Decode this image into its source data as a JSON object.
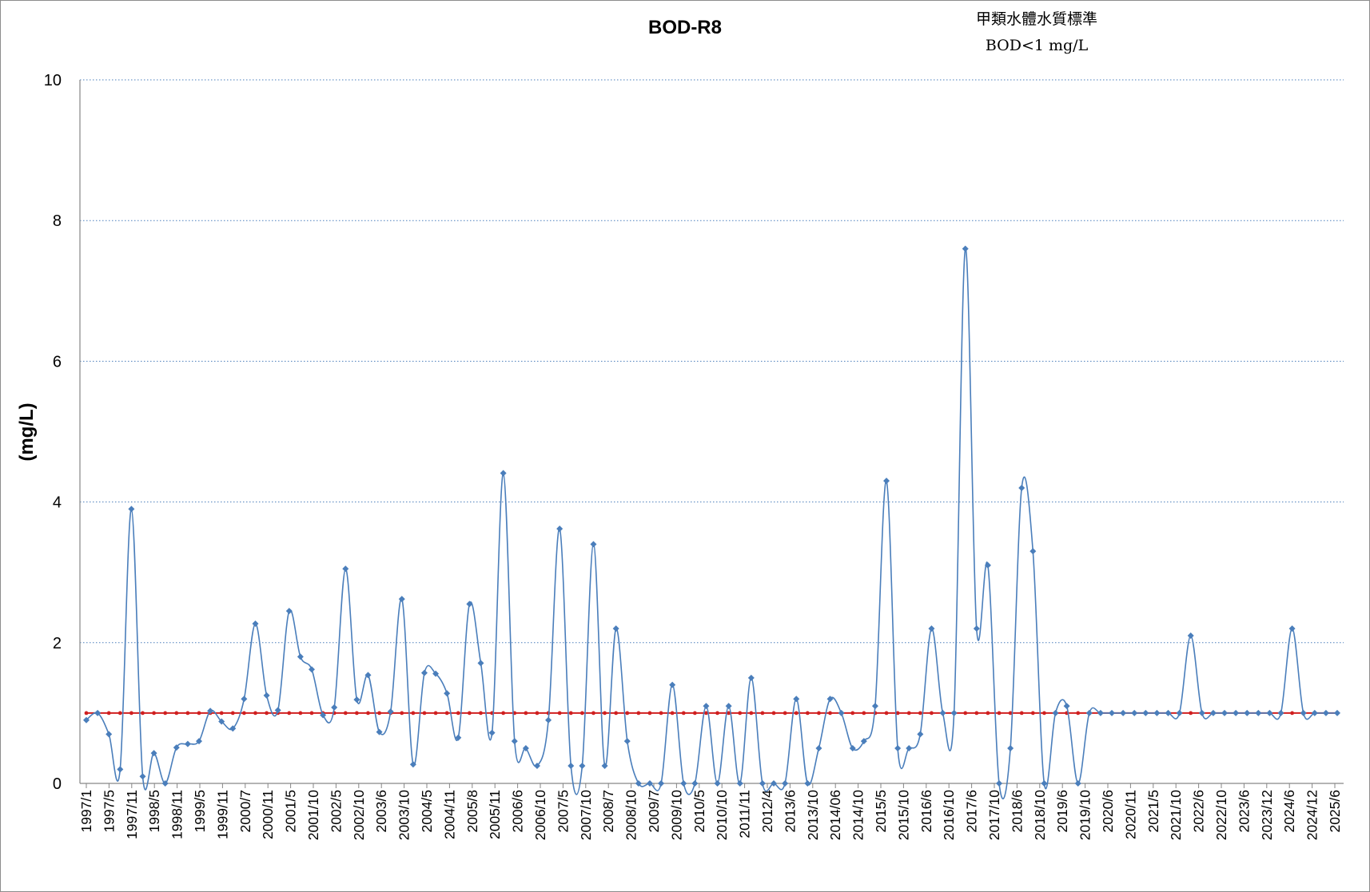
{
  "chart_data": {
    "type": "line",
    "title": "BOD-R8",
    "annotation": [
      "甲類水體水質標準",
      "BOD<1 mg/L"
    ],
    "ylabel": "(mg/L)",
    "xlabel": "",
    "ylim": [
      0,
      10
    ],
    "yticks": [
      0,
      2,
      4,
      6,
      8,
      10
    ],
    "grid": "horizontal dotted",
    "colors": {
      "series": "#4a7ebb",
      "standard": "#d02020",
      "grid": "#4a7ebb"
    },
    "x_tick_labels": [
      "1997/1",
      "1997/5",
      "1997/11",
      "1998/5",
      "1998/11",
      "1999/5",
      "1999/11",
      "2000/7",
      "2000/11",
      "2001/5",
      "2001/10",
      "2002/5",
      "2002/10",
      "2003/6",
      "2003/10",
      "2004/5",
      "2004/11",
      "2005/8",
      "2005/11",
      "2006/6",
      "2006/10",
      "2007/5",
      "2007/10",
      "2008/7",
      "2008/10",
      "2009/7",
      "2009/10",
      "2010/5",
      "2010/10",
      "2011/11",
      "2012/4",
      "2013/6",
      "2013/10",
      "2014/06",
      "2014/10",
      "2015/5",
      "2015/10",
      "2016/6",
      "2016/10",
      "2017/6",
      "2017/10",
      "2018/6",
      "2018/10",
      "2019/6",
      "2019/10",
      "2020/6",
      "2020/11",
      "2021/5",
      "2021/10",
      "2022/6",
      "2022/10",
      "2023/6",
      "2023/12",
      "2024/6",
      "2024/12",
      "2025/6"
    ],
    "series": [
      {
        "values": [
          0.9,
          1.0,
          0.7,
          0.2,
          3.9,
          0.1,
          0.43,
          0.0,
          0.51,
          0.56,
          0.6,
          1.03,
          0.88,
          0.78,
          1.2,
          2.27,
          1.25,
          1.04,
          2.45,
          1.8,
          1.62,
          0.97,
          1.08,
          3.05,
          1.19,
          1.54,
          0.73,
          1.02,
          2.62,
          0.27,
          1.57,
          1.56,
          1.28,
          0.65,
          2.55,
          1.71,
          0.72,
          4.41,
          0.6,
          0.5,
          0.25,
          0.9,
          3.62,
          0.25,
          0.25,
          3.4,
          0.25,
          2.2,
          0.6,
          0.0,
          0.0,
          0.0,
          1.4,
          0.0,
          0.0,
          1.1,
          0.0,
          1.1,
          0.0,
          1.5,
          0.0,
          0.0,
          0.0,
          1.2,
          0.0,
          0.5,
          1.2,
          1.0,
          0.5,
          0.6,
          1.1,
          4.3,
          0.5,
          0.5,
          0.7,
          2.2,
          1.0,
          1.0,
          7.6,
          2.2,
          3.1,
          0.0,
          0.5,
          4.2,
          3.3,
          0.0,
          1.0,
          1.1,
          0.0,
          1.0,
          1.0,
          1.0,
          1.0,
          1.0,
          1.0,
          1.0,
          1.0,
          1.0,
          2.1,
          1.0,
          1.0,
          1.0,
          1.0,
          1.0,
          1.0,
          1.0,
          1.0,
          2.2,
          1.0,
          1.0,
          1.0,
          1.0
        ]
      },
      {
        "values": [
          1,
          1,
          1,
          1,
          1,
          1,
          1,
          1,
          1,
          1,
          1,
          1,
          1,
          1,
          1,
          1,
          1,
          1,
          1,
          1,
          1,
          1,
          1,
          1,
          1,
          1,
          1,
          1,
          1,
          1,
          1,
          1,
          1,
          1,
          1,
          1,
          1,
          1,
          1,
          1,
          1,
          1,
          1,
          1,
          1,
          1,
          1,
          1,
          1,
          1,
          1,
          1,
          1,
          1,
          1,
          1,
          1,
          1,
          1,
          1,
          1,
          1,
          1,
          1,
          1,
          1,
          1,
          1,
          1,
          1,
          1,
          1,
          1,
          1,
          1,
          1,
          1,
          1,
          1,
          1,
          1,
          1,
          1,
          1,
          1,
          1,
          1,
          1,
          1,
          1,
          1,
          1,
          1,
          1,
          1,
          1,
          1,
          1,
          1,
          1,
          1,
          1,
          1,
          1,
          1,
          1,
          1,
          1,
          1,
          1,
          1,
          1
        ]
      }
    ]
  }
}
